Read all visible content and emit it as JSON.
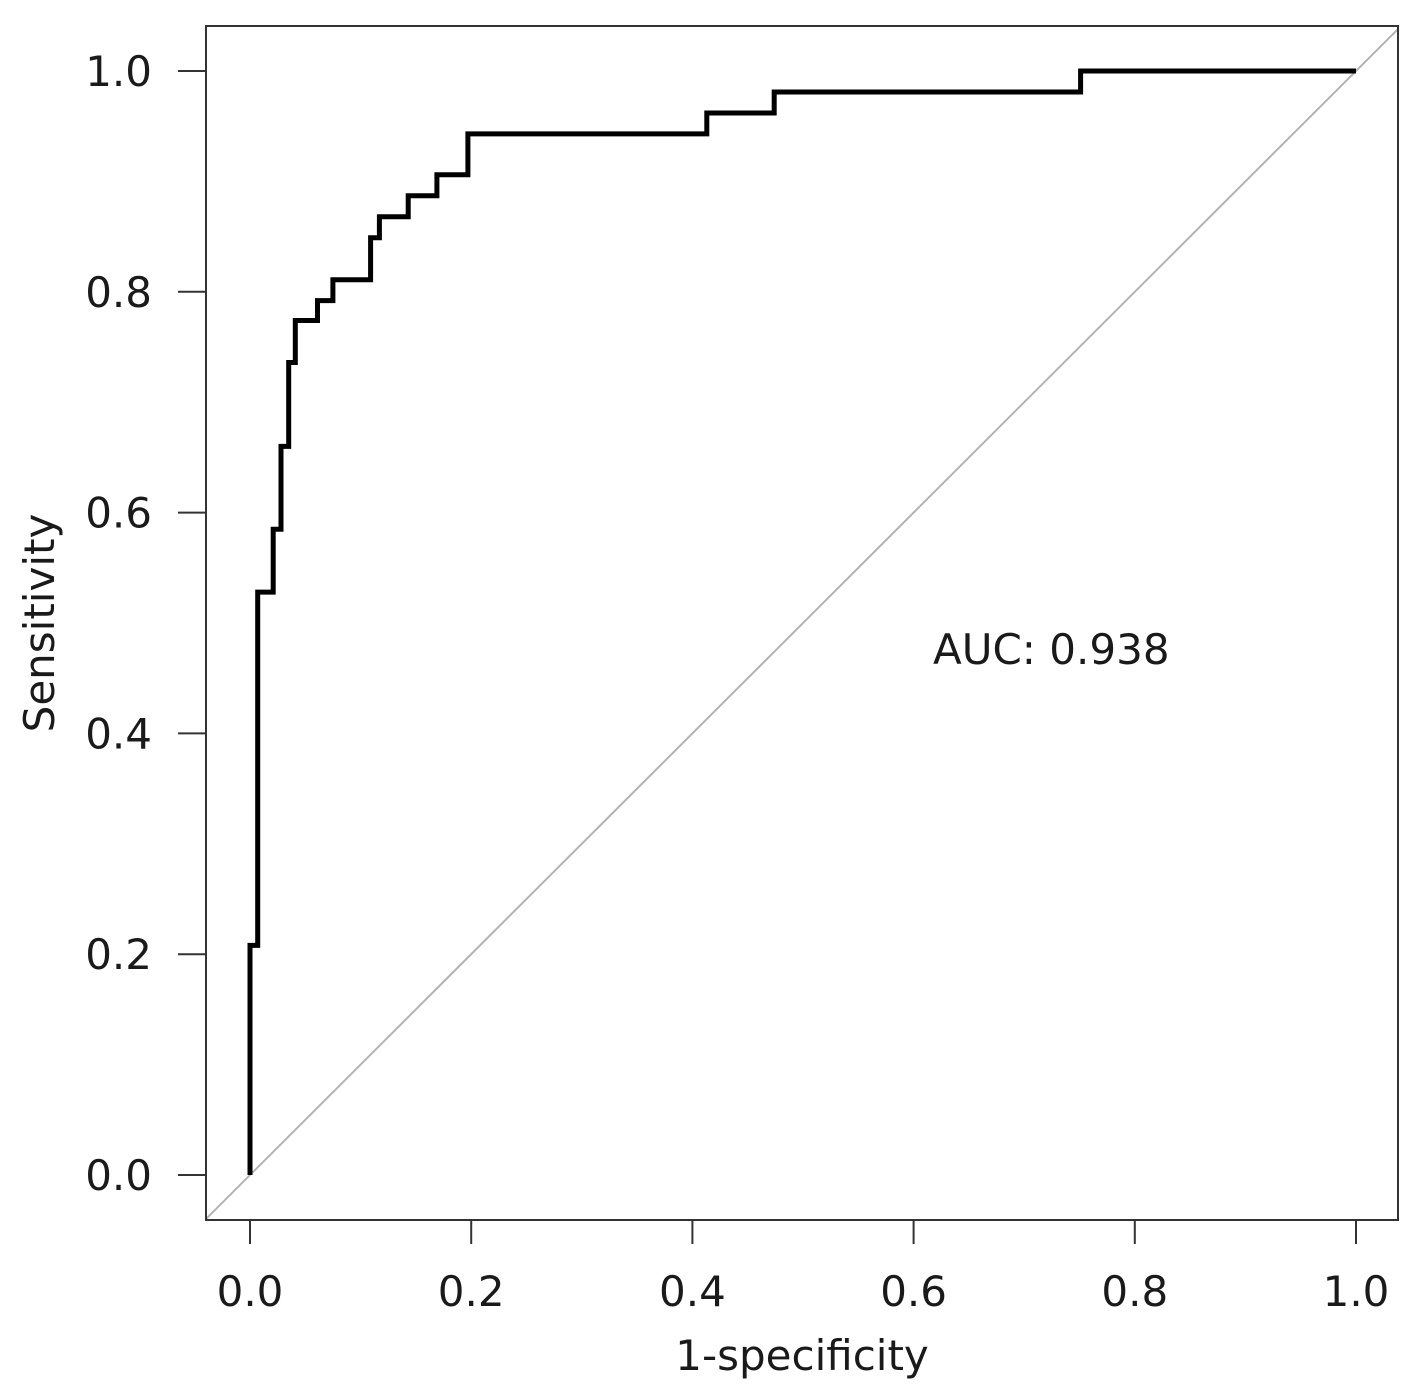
{
  "chart_data": {
    "type": "line",
    "title": "",
    "xlabel": "1-specificity",
    "ylabel": "Sensitivity",
    "xlim": [
      0,
      1
    ],
    "ylim": [
      0,
      1
    ],
    "x_ticks": [
      "0.0",
      "0.2",
      "0.4",
      "0.6",
      "0.8",
      "1.0"
    ],
    "y_ticks": [
      "0.0",
      "0.2",
      "0.4",
      "0.6",
      "0.8",
      "1.0"
    ],
    "grid": false,
    "legend": "none",
    "annotation": "AUC: 0.938",
    "series": [
      {
        "color": "#000000",
        "x": [
          0.0,
          0.0,
          0.007,
          0.007,
          0.021,
          0.021,
          0.028,
          0.028,
          0.035,
          0.035,
          0.041,
          0.041,
          0.061,
          0.061,
          0.075,
          0.075,
          0.109,
          0.109,
          0.117,
          0.117,
          0.143,
          0.143,
          0.169,
          0.169,
          0.197,
          0.197,
          0.413,
          0.413,
          0.474,
          0.474,
          0.751,
          0.751,
          1.0
        ],
        "y": [
          0.0,
          0.208,
          0.208,
          0.528,
          0.528,
          0.585,
          0.585,
          0.66,
          0.66,
          0.736,
          0.736,
          0.774,
          0.774,
          0.792,
          0.792,
          0.811,
          0.811,
          0.849,
          0.849,
          0.868,
          0.868,
          0.887,
          0.887,
          0.906,
          0.906,
          0.943,
          0.943,
          0.962,
          0.962,
          0.981,
          0.981,
          1.0,
          1.0
        ]
      }
    ],
    "reference_line": {
      "color": "#b3b3b3",
      "x": [
        0,
        1
      ],
      "y": [
        0,
        1
      ]
    }
  }
}
